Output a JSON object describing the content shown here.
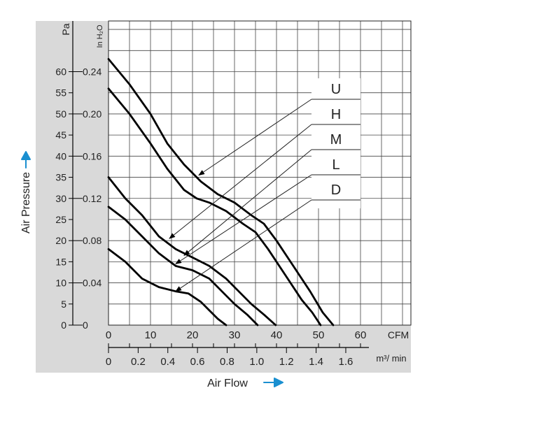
{
  "chart_data": {
    "type": "line",
    "title": "",
    "xlabel": "Air Flow",
    "ylabel": "Air Pressure",
    "x_unit": "CFM",
    "x2_unit": "m³/ min",
    "y_unit": "Pa",
    "y2_unit": "In H₂O",
    "xlim": [
      0,
      72
    ],
    "ylim": [
      0,
      72
    ],
    "x_ticks": [
      "0",
      "10",
      "20",
      "30",
      "40",
      "50",
      "60"
    ],
    "x2_ticks": [
      "0",
      "0.2",
      "0.4",
      "0.6",
      "0.8",
      "1.0",
      "1.2",
      "1.4",
      "1.6"
    ],
    "y_ticks": [
      "0",
      "5",
      "10",
      "15",
      "20",
      "25",
      "30",
      "35",
      "40",
      "45",
      "50",
      "55",
      "60"
    ],
    "y2_ticks": [
      "0",
      "0.04",
      "0.08",
      "0.12",
      "0.16",
      "0.20",
      "0.24"
    ],
    "grid": true,
    "legend_position": "top-right",
    "colors": {
      "curve": "#000000",
      "grid": "#444444",
      "axis_band": "#d9d9d9",
      "arrow": "#1a8fd0"
    },
    "series": [
      {
        "name": "U",
        "x": [
          0,
          5,
          10,
          14,
          18,
          22,
          26,
          30,
          34,
          37,
          40,
          44,
          48,
          51,
          53.5
        ],
        "y": [
          63,
          57,
          50,
          43,
          38,
          34,
          31,
          29,
          26,
          24,
          20,
          14,
          8,
          3,
          0
        ]
      },
      {
        "name": "H",
        "x": [
          0,
          5,
          10,
          14,
          18,
          21,
          24,
          28,
          32,
          35,
          38,
          42,
          46,
          48.5,
          50.5
        ],
        "y": [
          56,
          50,
          43,
          37,
          32,
          30,
          29,
          27,
          24,
          22,
          18,
          12,
          6,
          3,
          0
        ]
      },
      {
        "name": "M",
        "x": [
          0,
          4,
          8,
          12,
          16,
          20,
          24,
          28,
          31,
          34,
          37,
          39.8
        ],
        "y": [
          35,
          30,
          26,
          21,
          18,
          16,
          14,
          11,
          8,
          5,
          2.5,
          0
        ]
      },
      {
        "name": "L",
        "x": [
          0,
          4,
          8,
          12,
          16,
          20,
          24,
          27,
          30,
          33,
          35.5
        ],
        "y": [
          28,
          25,
          21,
          17,
          14,
          13,
          11,
          8,
          5,
          2.5,
          0
        ]
      },
      {
        "name": "D",
        "x": [
          0,
          4,
          8,
          12,
          16,
          19,
          22,
          24,
          26,
          28
        ],
        "y": [
          18,
          15,
          11,
          9,
          8,
          7.5,
          5.5,
          3.5,
          1.5,
          0
        ]
      }
    ],
    "labels": [
      {
        "text": "U",
        "target_x": 21.5,
        "target_y": 35.5
      },
      {
        "text": "H",
        "target_x": 14.5,
        "target_y": 20.5
      },
      {
        "text": "M",
        "target_x": 18,
        "target_y": 16.5
      },
      {
        "text": "L",
        "target_x": 16,
        "target_y": 14.5
      },
      {
        "text": "D",
        "target_x": 16,
        "target_y": 8
      }
    ]
  }
}
